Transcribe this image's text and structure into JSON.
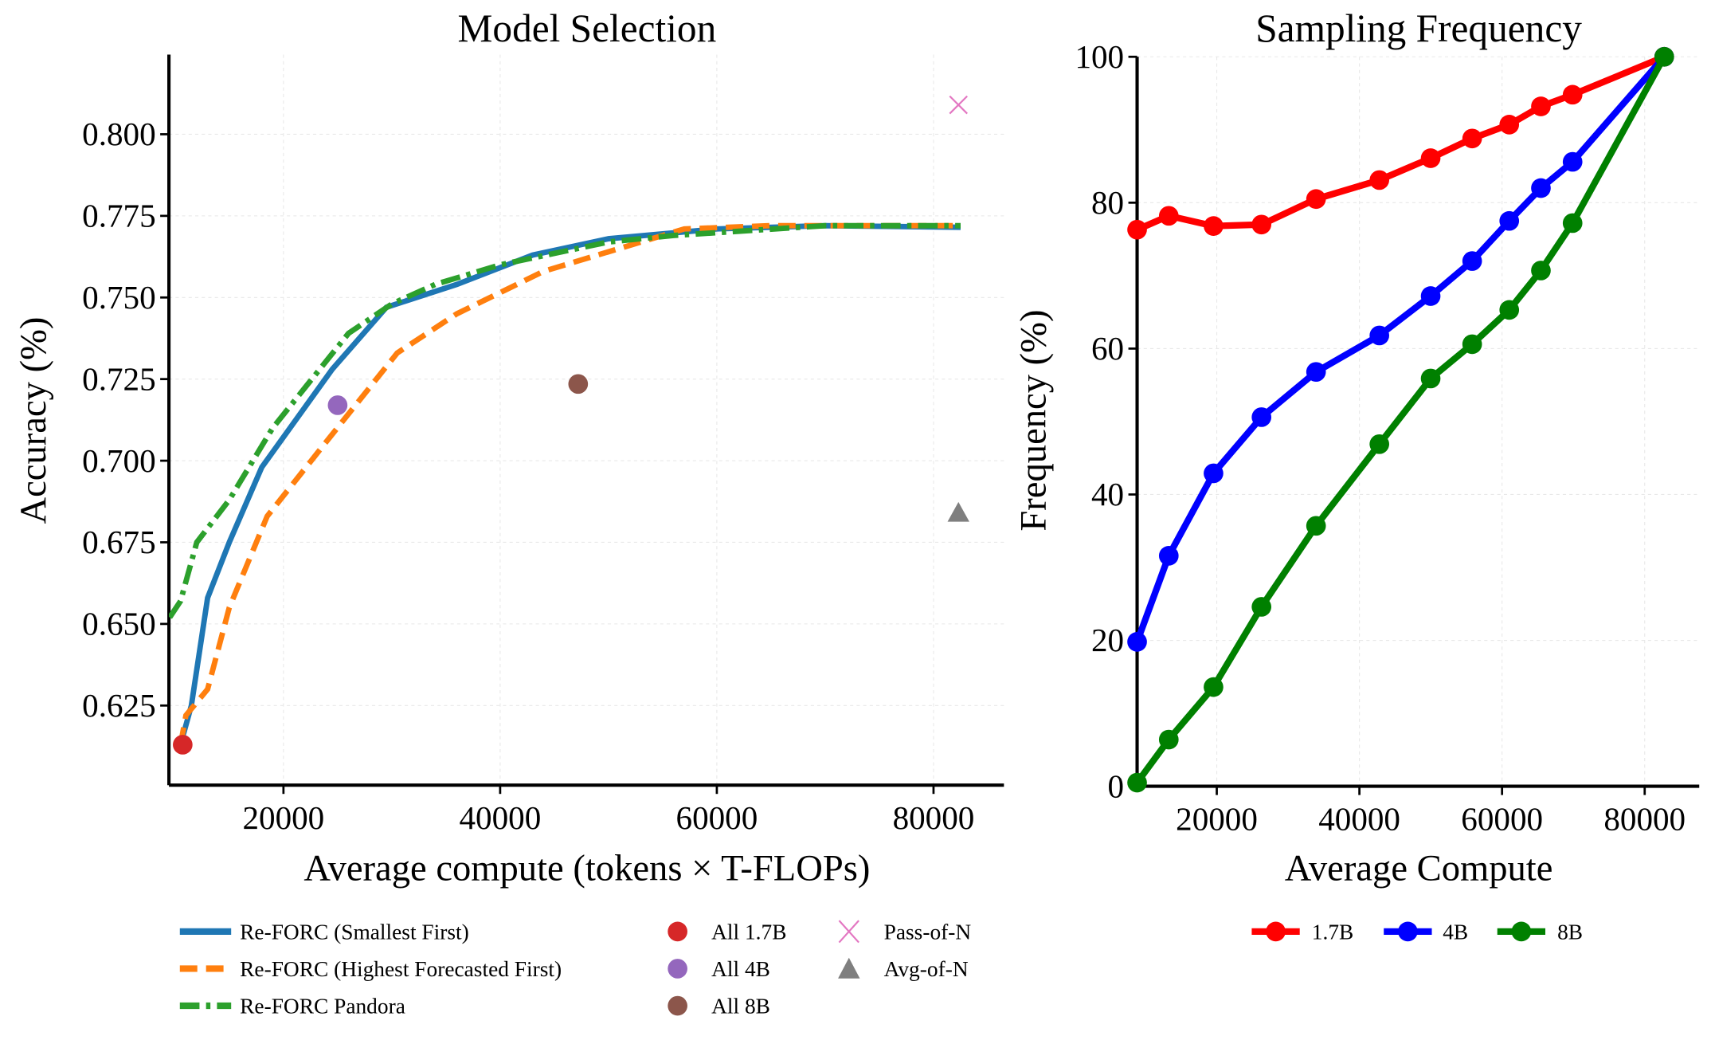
{
  "chart_data": [
    {
      "type": "line",
      "title": "Model Selection",
      "xlabel": "Average compute (tokens × T-FLOPs)",
      "ylabel": "Accuracy (%)",
      "xlim": [
        9430,
        86500
      ],
      "ylim": [
        0.6006,
        0.8244
      ],
      "xticks": [
        "20000",
        "40000",
        "60000",
        "80000"
      ],
      "xtick_values": [
        20000,
        40000,
        60000,
        80000
      ],
      "yticks": [
        "0.625",
        "0.650",
        "0.675",
        "0.700",
        "0.725",
        "0.750",
        "0.775",
        "0.800"
      ],
      "ytick_values": [
        0.625,
        0.65,
        0.675,
        0.7,
        0.725,
        0.75,
        0.775,
        0.8
      ],
      "grid": true,
      "legend_position": "bottom",
      "series": [
        {
          "name": "Re-FORC (Smallest First)",
          "color": "#1f77b4",
          "style": "solid",
          "x": [
            10500,
            11500,
            13000,
            15000,
            18000,
            24500,
            29500,
            36000,
            43000,
            50000,
            60000,
            70000,
            82500
          ],
          "y": [
            0.613,
            0.625,
            0.658,
            0.675,
            0.698,
            0.728,
            0.747,
            0.754,
            0.763,
            0.768,
            0.771,
            0.772,
            0.7715
          ]
        },
        {
          "name": "Re-FORC (Highest Forecasted First)",
          "color": "#ff7f0e",
          "style": "dashed",
          "x": [
            10500,
            11000,
            13000,
            15000,
            18500,
            24000,
            30500,
            36000,
            44000,
            50000,
            57000,
            65000,
            82500
          ],
          "y": [
            0.613,
            0.622,
            0.63,
            0.655,
            0.683,
            0.706,
            0.733,
            0.745,
            0.758,
            0.764,
            0.771,
            0.772,
            0.772
          ]
        },
        {
          "name": "Re-FORC Pandora",
          "color": "#2ca02c",
          "style": "dashdot",
          "x": [
            9500,
            10500,
            12000,
            15000,
            19000,
            26000,
            30000,
            34000,
            40000,
            50000,
            56000,
            70000,
            82500
          ],
          "y": [
            0.652,
            0.657,
            0.675,
            0.688,
            0.71,
            0.739,
            0.748,
            0.754,
            0.76,
            0.767,
            0.769,
            0.772,
            0.772
          ]
        }
      ],
      "points": [
        {
          "name": "All 1.7B",
          "color": "#d62728",
          "marker": "circle",
          "x": 10700,
          "y": 0.613
        },
        {
          "name": "All 4B",
          "color": "#9467bd",
          "marker": "circle",
          "x": 25000,
          "y": 0.717
        },
        {
          "name": "All 8B",
          "color": "#8c564b",
          "marker": "circle",
          "x": 47200,
          "y": 0.7235
        },
        {
          "name": "Pass-of-N",
          "color": "#e377c2",
          "marker": "x",
          "x": 82300,
          "y": 0.809
        },
        {
          "name": "Avg-of-N",
          "color": "#7f7f7f",
          "marker": "triangle",
          "x": 82300,
          "y": 0.684
        }
      ]
    },
    {
      "type": "line",
      "title": "Sampling Frequency",
      "xlabel": "Average Compute",
      "ylabel": "Frequency (%)",
      "xlim": [
        8830,
        87650
      ],
      "ylim": [
        0,
        100
      ],
      "xticks": [
        "20000",
        "40000",
        "60000",
        "80000"
      ],
      "xtick_values": [
        20000,
        40000,
        60000,
        80000
      ],
      "yticks": [
        "0",
        "20",
        "40",
        "60",
        "80",
        "100"
      ],
      "ytick_values": [
        0,
        20,
        40,
        60,
        80,
        100
      ],
      "grid": true,
      "legend_position": "bottom",
      "x": [
        8830,
        13270,
        19540,
        26270,
        33920,
        42800,
        49990,
        55810,
        61010,
        65450,
        69890,
        82740
      ],
      "series": [
        {
          "name": "1.7B",
          "color": "#ff0000",
          "y": [
            76.3,
            78.2,
            76.8,
            77.0,
            80.5,
            83.1,
            86.1,
            88.8,
            90.7,
            93.2,
            94.8,
            100
          ]
        },
        {
          "name": "4B",
          "color": "#0000ff",
          "y": [
            19.8,
            31.6,
            42.9,
            50.6,
            56.8,
            61.8,
            67.2,
            72.0,
            77.5,
            82.0,
            85.6,
            100
          ]
        },
        {
          "name": "8B",
          "color": "#008000",
          "y": [
            0.5,
            6.4,
            13.6,
            24.6,
            35.7,
            46.9,
            55.9,
            60.6,
            65.3,
            70.7,
            77.2,
            100
          ]
        }
      ]
    }
  ]
}
